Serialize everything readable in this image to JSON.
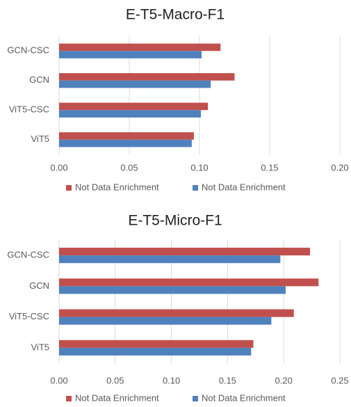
{
  "chart_data": [
    {
      "type": "barh",
      "title": "E-T5-Macro-F1",
      "categories": [
        "GCN-CSC",
        "GCN",
        "ViT5-CSC",
        "ViT5"
      ],
      "series": [
        {
          "name": "Not Data Enrichment",
          "color": "#c0504d",
          "values": [
            0.115,
            0.125,
            0.106,
            0.096
          ]
        },
        {
          "name": "Not Data Enrichment",
          "color": "#4f81bd",
          "values": [
            0.1015,
            0.108,
            0.101,
            0.0945
          ]
        }
      ],
      "xlim": [
        0,
        0.2
      ],
      "xticks": [
        {
          "value": 0,
          "label": "0.00"
        },
        {
          "value": 0.05,
          "label": "0.05"
        },
        {
          "value": 0.1,
          "label": "0.10"
        },
        {
          "value": 0.15,
          "label": "0.15"
        },
        {
          "value": 0.2,
          "label": "0.20"
        }
      ],
      "grid": true,
      "legend": "bottom"
    },
    {
      "type": "barh",
      "title": "E-T5-Micro-F1",
      "categories": [
        "GCN-CSC",
        "GCN",
        "ViT5-CSC",
        "ViT5"
      ],
      "series": [
        {
          "name": "Not Data Enrichment",
          "color": "#c0504d",
          "values": [
            0.2234,
            0.231,
            0.209,
            0.173
          ]
        },
        {
          "name": "Not Data Enrichment",
          "color": "#4f81bd",
          "values": [
            0.197,
            0.2017,
            0.189,
            0.171
          ]
        }
      ],
      "xlim": [
        0,
        0.25
      ],
      "xticks": [
        {
          "value": 0,
          "label": "0.00"
        },
        {
          "value": 0.05,
          "label": "0.05"
        },
        {
          "value": 0.1,
          "label": "0.10"
        },
        {
          "value": 0.15,
          "label": "0.15"
        },
        {
          "value": 0.2,
          "label": "0.20"
        },
        {
          "value": 0.25,
          "label": "0.25"
        }
      ],
      "grid": true,
      "legend": "bottom"
    }
  ]
}
